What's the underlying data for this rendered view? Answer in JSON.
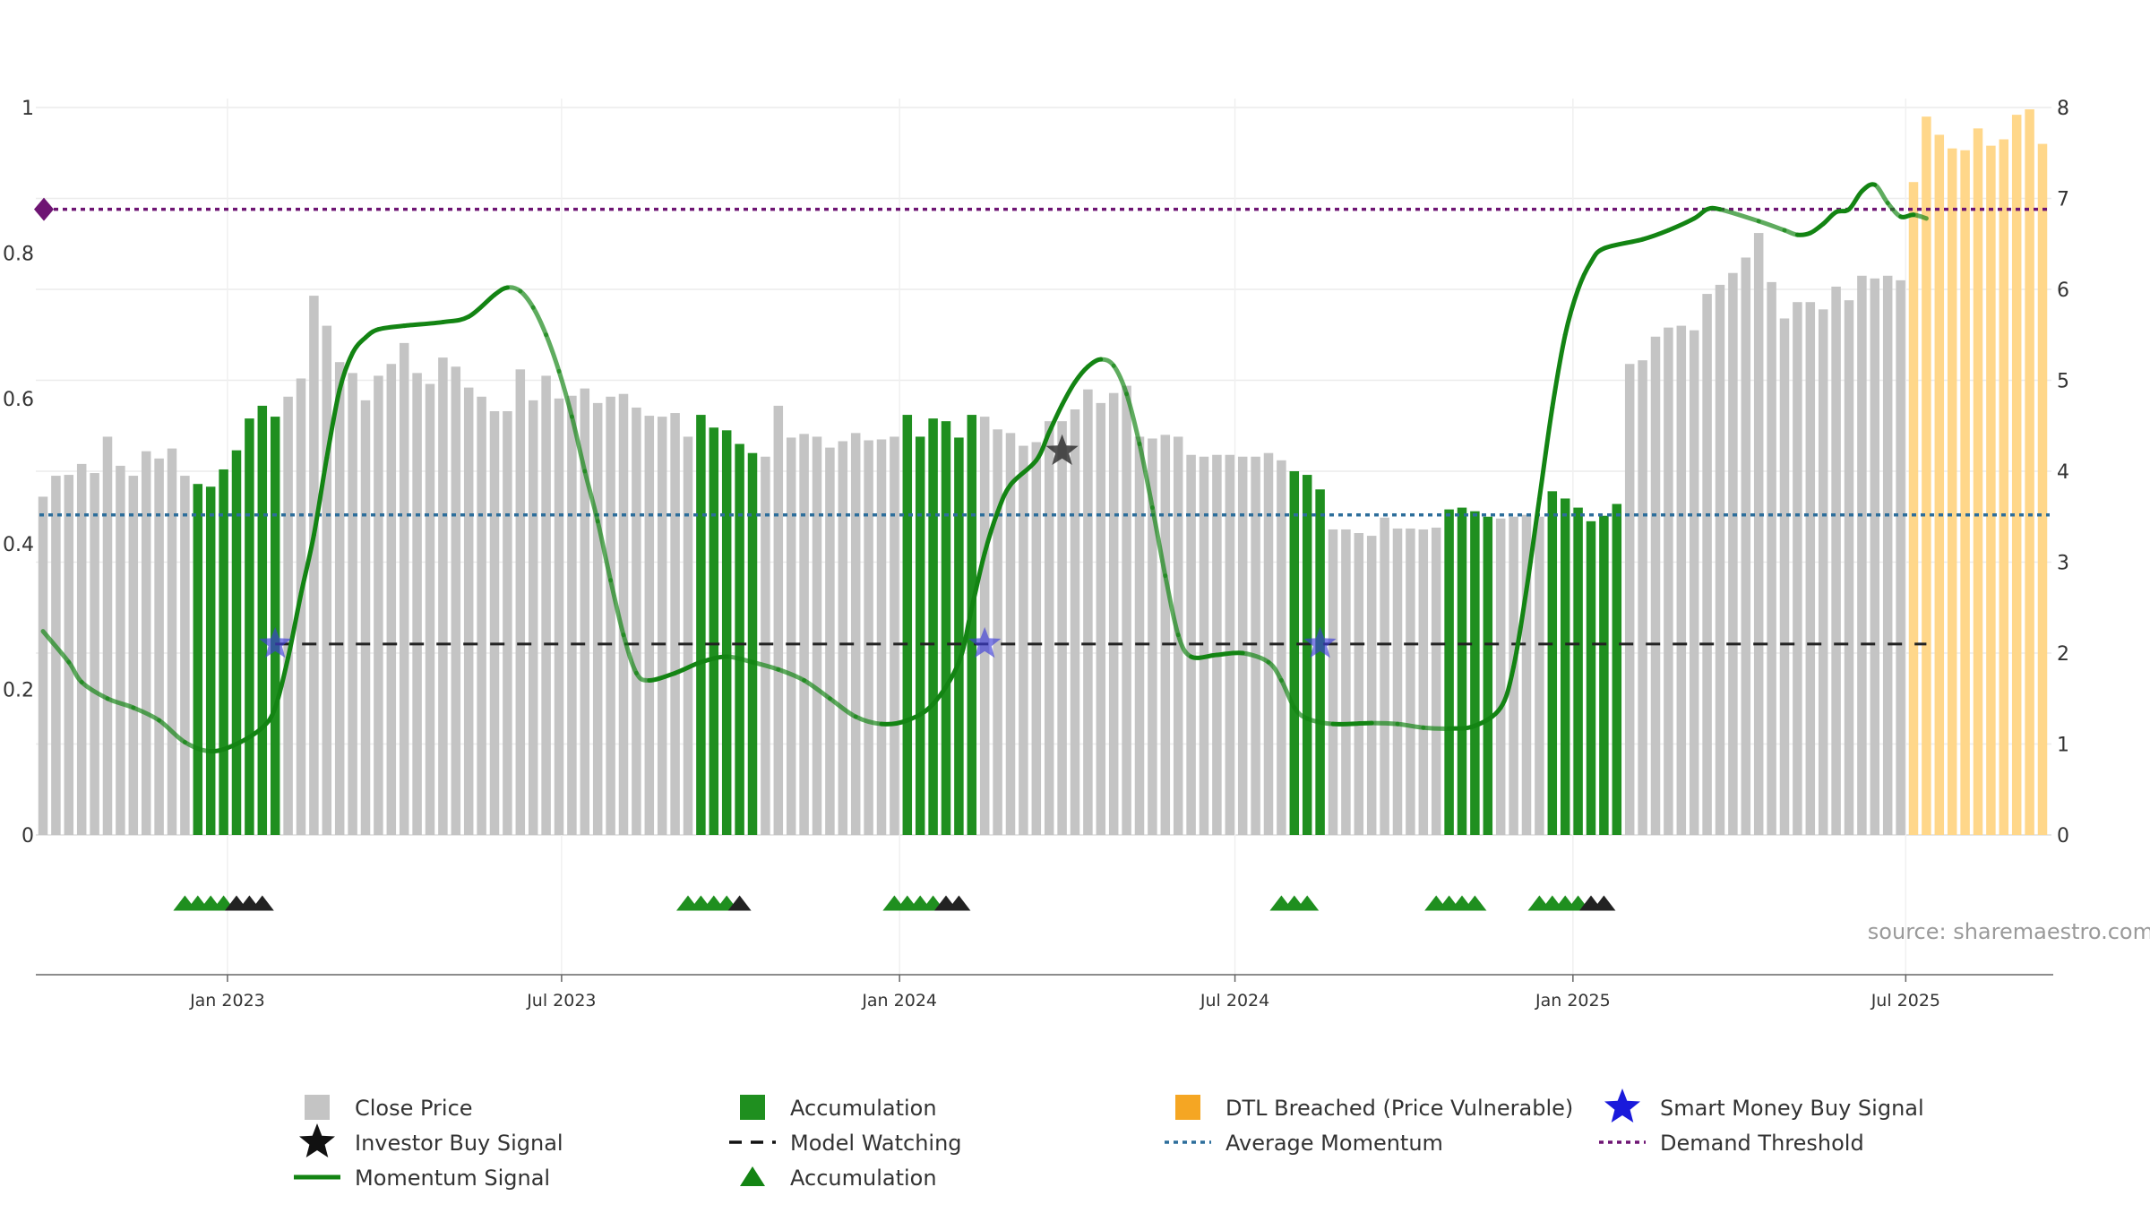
{
  "chart_data": {
    "type": "bar",
    "source": "source: sharemaestro.com",
    "left_axis": {
      "ticks": [
        "0",
        "0.2",
        "0.4",
        "0.6",
        "0.8",
        "1"
      ],
      "range": [
        0,
        1
      ]
    },
    "right_axis": {
      "ticks": [
        "0",
        "1",
        "2",
        "3",
        "4",
        "5",
        "6",
        "7",
        "8"
      ],
      "range": [
        0,
        8
      ]
    },
    "x_axis": {
      "ticks": [
        {
          "label": "Jan 2023",
          "index": 14.3
        },
        {
          "label": "Jul 2023",
          "index": 40.2
        },
        {
          "label": "Jan 2024",
          "index": 66.4
        },
        {
          "label": "Jul 2024",
          "index": 92.4
        },
        {
          "label": "Jan 2025",
          "index": 118.6
        },
        {
          "label": "Jul 2025",
          "index": 144.4
        }
      ]
    },
    "colors": {
      "close": "#c4c4c4",
      "accumulation": "#1f8f1f",
      "dtl": "#ffd78a",
      "momentum": "#138413",
      "avg_momentum": "#2d6e9b",
      "demand": "#6e1573",
      "model": "#222222",
      "smart_money": "#3d3dd8",
      "investor": "#333333"
    },
    "close_price": [
      3.72,
      3.95,
      3.96,
      4.08,
      3.98,
      4.38,
      4.06,
      3.95,
      4.22,
      4.14,
      4.25,
      3.95,
      3.86,
      3.83,
      4.02,
      4.23,
      4.58,
      4.72,
      4.6,
      4.82,
      5.02,
      5.93,
      5.6,
      5.2,
      5.08,
      4.78,
      5.05,
      5.18,
      5.41,
      5.08,
      4.96,
      5.25,
      5.15,
      4.92,
      4.82,
      4.66,
      4.66,
      5.12,
      4.78,
      5.05,
      4.8,
      4.83,
      4.91,
      4.75,
      4.82,
      4.85,
      4.7,
      4.61,
      4.6,
      4.64,
      4.38,
      4.62,
      4.48,
      4.45,
      4.3,
      4.2,
      4.16,
      4.72,
      4.37,
      4.41,
      4.38,
      4.26,
      4.33,
      4.42,
      4.34,
      4.35,
      4.38,
      4.62,
      4.38,
      4.58,
      4.55,
      4.37,
      4.62,
      4.6,
      4.46,
      4.42,
      4.28,
      4.32,
      4.55,
      4.55,
      4.68,
      4.9,
      4.75,
      4.86,
      4.94,
      4.38,
      4.36,
      4.4,
      4.38,
      4.18,
      4.16,
      4.18,
      4.18,
      4.16,
      4.16,
      4.2,
      4.12,
      4.0,
      3.96,
      3.8,
      3.36,
      3.36,
      3.32,
      3.29,
      3.49,
      3.37,
      3.37,
      3.36,
      3.38,
      3.58,
      3.6,
      3.56,
      3.5,
      3.48,
      3.5,
      3.52,
      3.5,
      3.78,
      3.7,
      3.6,
      3.45,
      3.51,
      3.64,
      5.18,
      5.22,
      5.48,
      5.58,
      5.6,
      5.55,
      5.95,
      6.05,
      6.18,
      6.35,
      6.62,
      6.08,
      5.68,
      5.86,
      5.86,
      5.78,
      6.03,
      5.88,
      6.15,
      6.12,
      6.15,
      6.1
    ],
    "accumulation_ranges": [
      [
        12,
        18
      ],
      [
        51,
        55
      ],
      [
        67,
        72
      ],
      [
        97,
        99
      ],
      [
        109,
        112
      ],
      [
        117,
        122
      ]
    ],
    "dtl_values": [
      7.18,
      7.9,
      7.7,
      7.55,
      7.53,
      7.77,
      7.58,
      7.65,
      7.92,
      7.98,
      7.6
    ],
    "momentum_signal": [
      [
        0,
        2.24
      ],
      [
        2,
        1.9
      ],
      [
        3,
        1.68
      ],
      [
        5,
        1.5
      ],
      [
        7,
        1.4
      ],
      [
        9,
        1.26
      ],
      [
        11,
        1.02
      ],
      [
        13,
        0.92
      ],
      [
        15,
        1.0
      ],
      [
        17,
        1.18
      ],
      [
        18,
        1.4
      ],
      [
        19,
        1.95
      ],
      [
        20,
        2.65
      ],
      [
        21,
        3.3
      ],
      [
        22,
        4.15
      ],
      [
        23,
        4.9
      ],
      [
        24,
        5.3
      ],
      [
        25,
        5.47
      ],
      [
        26,
        5.56
      ],
      [
        28,
        5.6
      ],
      [
        31,
        5.64
      ],
      [
        33,
        5.7
      ],
      [
        35,
        5.94
      ],
      [
        36,
        6.02
      ],
      [
        37,
        5.98
      ],
      [
        38,
        5.8
      ],
      [
        39,
        5.5
      ],
      [
        40,
        5.1
      ],
      [
        41,
        4.6
      ],
      [
        42,
        4.0
      ],
      [
        43,
        3.45
      ],
      [
        44,
        2.8
      ],
      [
        45,
        2.2
      ],
      [
        46,
        1.78
      ],
      [
        47,
        1.7
      ],
      [
        49,
        1.78
      ],
      [
        51,
        1.9
      ],
      [
        53,
        1.96
      ],
      [
        55,
        1.9
      ],
      [
        57,
        1.82
      ],
      [
        59,
        1.7
      ],
      [
        61,
        1.5
      ],
      [
        63,
        1.3
      ],
      [
        65,
        1.22
      ],
      [
        67,
        1.26
      ],
      [
        69,
        1.44
      ],
      [
        71,
        1.9
      ],
      [
        72,
        2.5
      ],
      [
        73,
        3.1
      ],
      [
        74,
        3.55
      ],
      [
        75,
        3.85
      ],
      [
        77,
        4.12
      ],
      [
        78,
        4.43
      ],
      [
        79,
        4.73
      ],
      [
        80,
        4.98
      ],
      [
        81,
        5.15
      ],
      [
        82,
        5.23
      ],
      [
        83,
        5.16
      ],
      [
        84,
        4.85
      ],
      [
        85,
        4.3
      ],
      [
        86,
        3.6
      ],
      [
        87,
        2.85
      ],
      [
        88,
        2.2
      ],
      [
        89,
        1.96
      ],
      [
        91,
        1.98
      ],
      [
        93,
        2.0
      ],
      [
        95,
        1.9
      ],
      [
        96,
        1.7
      ],
      [
        97,
        1.4
      ],
      [
        98,
        1.28
      ],
      [
        100,
        1.22
      ],
      [
        103,
        1.23
      ],
      [
        105,
        1.22
      ],
      [
        107,
        1.18
      ],
      [
        109,
        1.17
      ],
      [
        111,
        1.2
      ],
      [
        113,
        1.4
      ],
      [
        114,
        1.85
      ],
      [
        115,
        2.7
      ],
      [
        116,
        3.7
      ],
      [
        117,
        4.7
      ],
      [
        118,
        5.5
      ],
      [
        119,
        6.0
      ],
      [
        120,
        6.3
      ],
      [
        121,
        6.45
      ],
      [
        124,
        6.55
      ],
      [
        126,
        6.65
      ],
      [
        128,
        6.78
      ],
      [
        129,
        6.88
      ],
      [
        130,
        6.88
      ],
      [
        133,
        6.75
      ],
      [
        135,
        6.65
      ],
      [
        136,
        6.6
      ],
      [
        137,
        6.62
      ],
      [
        138,
        6.72
      ],
      [
        139,
        6.85
      ],
      [
        140,
        6.88
      ],
      [
        141,
        7.08
      ],
      [
        142,
        7.15
      ],
      [
        143,
        6.95
      ],
      [
        144,
        6.8
      ],
      [
        145,
        6.82
      ],
      [
        146,
        6.78
      ]
    ],
    "avg_momentum": 3.52,
    "demand_threshold": 6.88,
    "model_watching": {
      "start": 18,
      "end": 146,
      "level": 2.1
    },
    "smart_money_signals": [
      [
        18,
        2.1
      ],
      [
        73,
        2.1
      ],
      [
        99,
        2.1
      ]
    ],
    "investor_signals": [
      [
        79,
        4.22
      ]
    ],
    "accumulation_markers": [
      {
        "green": [
          11,
          12,
          13,
          14
        ],
        "black": [
          15,
          16,
          17
        ]
      },
      {
        "green": [
          50,
          51,
          52,
          53
        ],
        "black": [
          54
        ]
      },
      {
        "green": [
          66,
          67,
          68,
          69
        ],
        "black": [
          70,
          71
        ]
      },
      {
        "green": [
          96,
          97,
          98
        ],
        "black": []
      },
      {
        "green": [
          108,
          109,
          110,
          111
        ],
        "black": []
      },
      {
        "green": [
          116,
          117,
          118,
          119
        ],
        "black": [
          120,
          121
        ]
      }
    ],
    "legend": [
      {
        "label": "Close Price",
        "symbol": "square-gray"
      },
      {
        "label": "Accumulation",
        "symbol": "square-green"
      },
      {
        "label": "DTL Breached (Price Vulnerable)",
        "symbol": "square-orange"
      },
      {
        "label": "Smart Money Buy Signal",
        "symbol": "star-blue"
      },
      {
        "label": "Investor Buy Signal",
        "symbol": "star-black"
      },
      {
        "label": "Model Watching",
        "symbol": "dash-black"
      },
      {
        "label": "Average Momentum",
        "symbol": "dot-blue"
      },
      {
        "label": "Demand Threshold",
        "symbol": "dot-purple"
      },
      {
        "label": "Momentum Signal",
        "symbol": "line-green"
      },
      {
        "label": "Accumulation",
        "symbol": "triangle-green"
      }
    ]
  }
}
